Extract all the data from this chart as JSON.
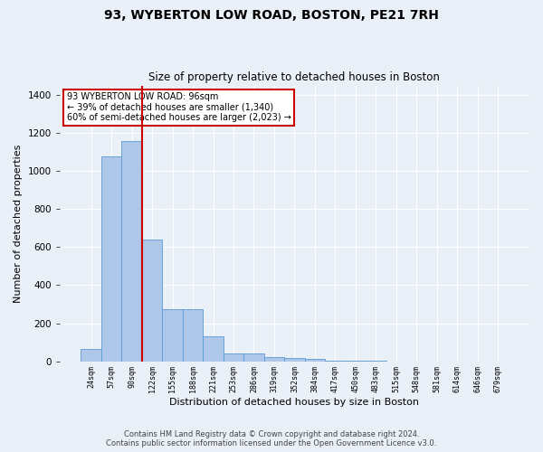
{
  "title": "93, WYBERTON LOW ROAD, BOSTON, PE21 7RH",
  "subtitle": "Size of property relative to detached houses in Boston",
  "xlabel": "Distribution of detached houses by size in Boston",
  "ylabel": "Number of detached properties",
  "footer_line1": "Contains HM Land Registry data © Crown copyright and database right 2024.",
  "footer_line2": "Contains public sector information licensed under the Open Government Licence v3.0.",
  "annotation_line1": "93 WYBERTON LOW ROAD: 96sqm",
  "annotation_line2": "← 39% of detached houses are smaller (1,340)",
  "annotation_line3": "60% of semi-detached houses are larger (2,023) →",
  "bar_labels": [
    "24sqm",
    "57sqm",
    "90sqm",
    "122sqm",
    "155sqm",
    "188sqm",
    "221sqm",
    "253sqm",
    "286sqm",
    "319sqm",
    "352sqm",
    "384sqm",
    "417sqm",
    "450sqm",
    "483sqm",
    "515sqm",
    "548sqm",
    "581sqm",
    "614sqm",
    "646sqm",
    "679sqm"
  ],
  "bar_values": [
    65,
    1075,
    1160,
    640,
    275,
    275,
    130,
    40,
    40,
    20,
    15,
    10,
    5,
    2,
    2,
    0,
    0,
    0,
    0,
    0,
    0
  ],
  "bar_color": "#aec6e8",
  "bar_edge_color": "#5b9bd5",
  "vline_color": "#cc0000",
  "annotation_box_color": "#cc0000",
  "background_color": "#eaf0f8",
  "ylim": [
    0,
    1450
  ],
  "yticks": [
    0,
    200,
    400,
    600,
    800,
    1000,
    1200,
    1400
  ],
  "figsize": [
    6.0,
    5.0
  ],
  "dpi": 100
}
